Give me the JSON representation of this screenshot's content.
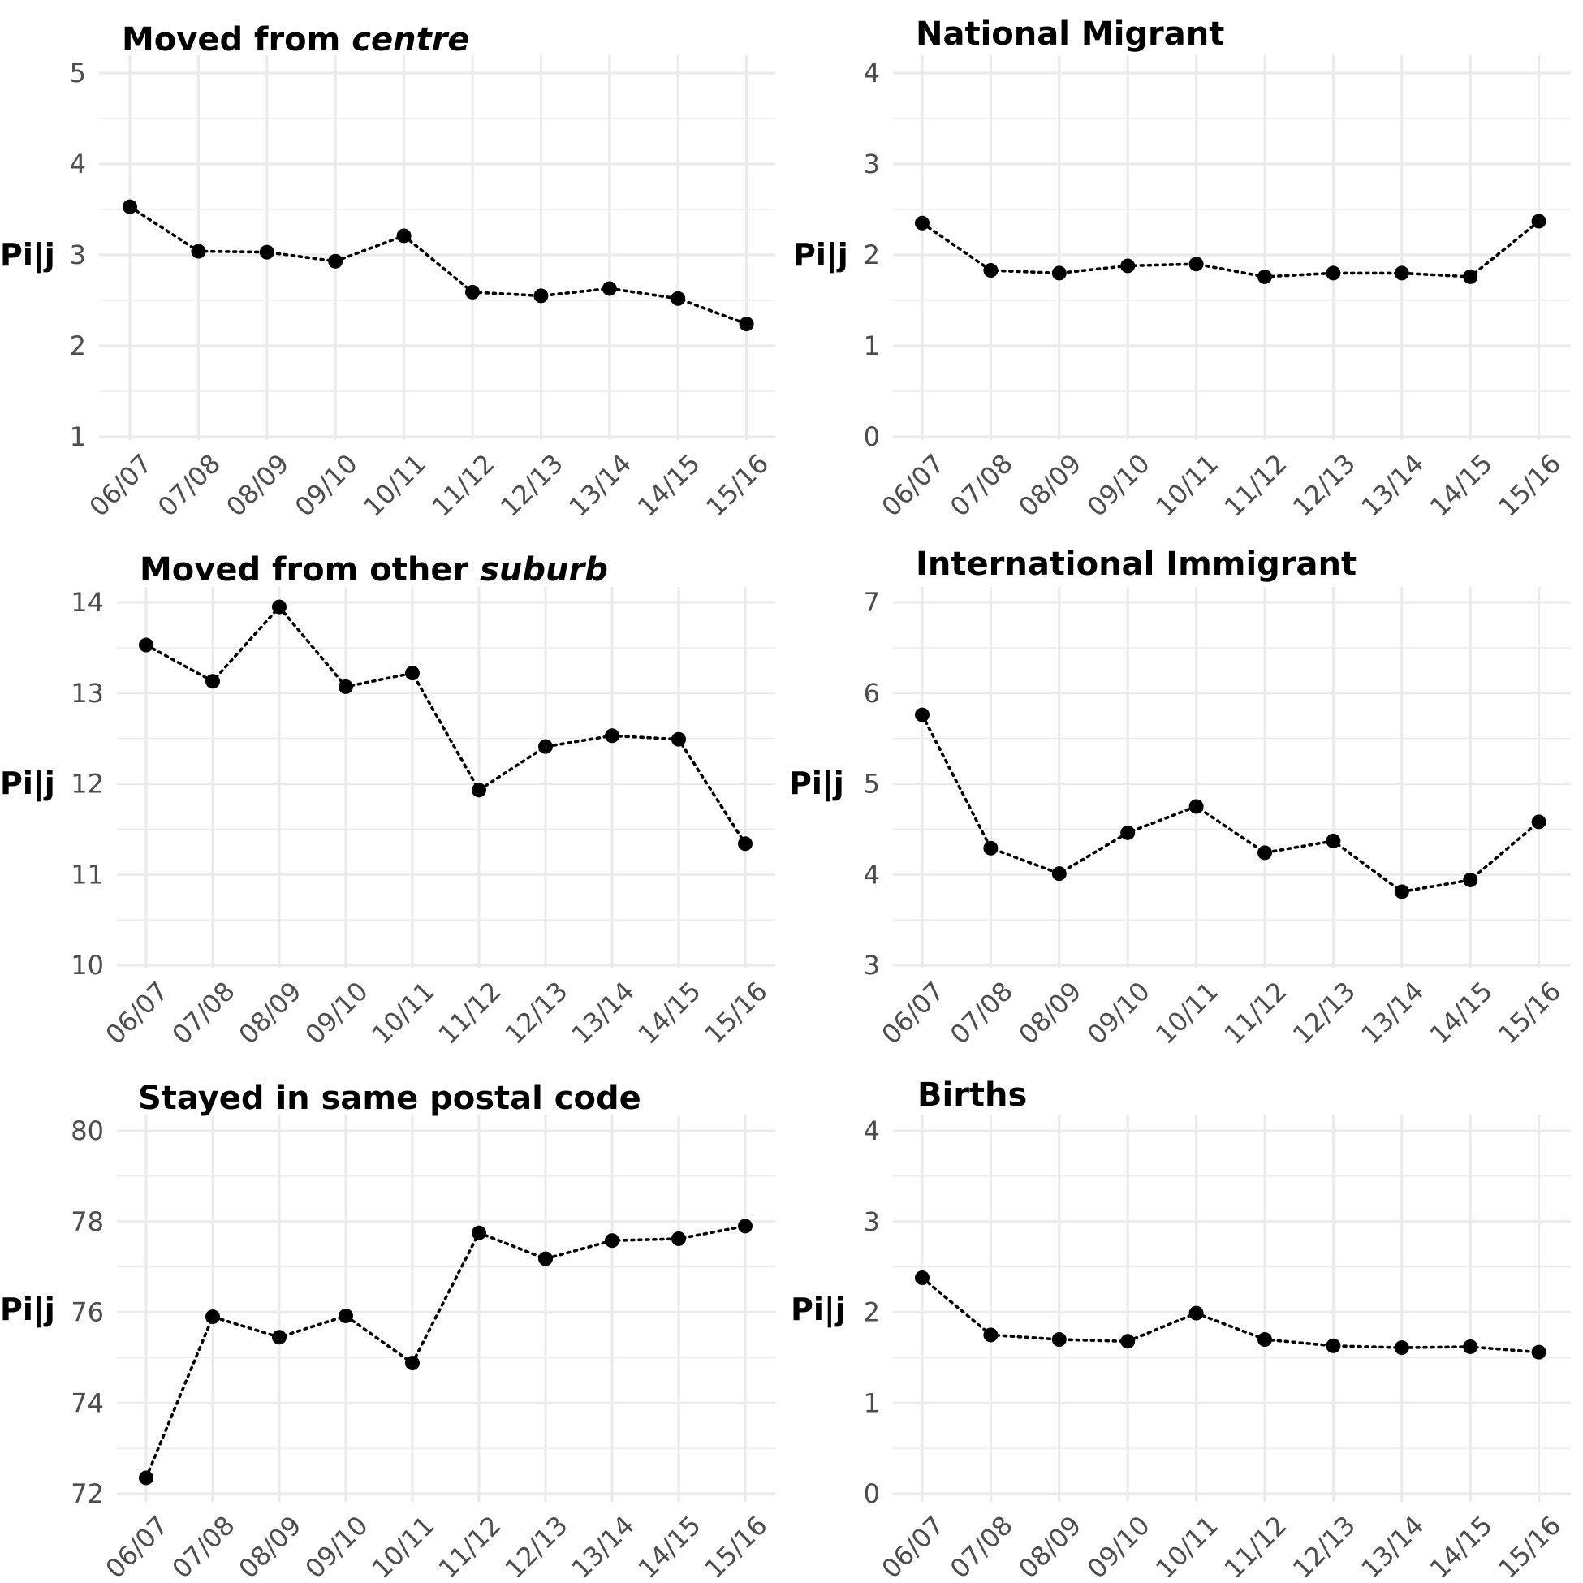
{
  "chart_data": [
    {
      "type": "line",
      "title": "Moved from ",
      "title_emph": "centre",
      "ylabel": "Pi|j",
      "categories": [
        "06/07",
        "07/08",
        "08/09",
        "09/10",
        "10/11",
        "11/12",
        "12/13",
        "13/14",
        "14/15",
        "15/16"
      ],
      "values": [
        3.53,
        3.04,
        3.03,
        2.93,
        3.21,
        2.59,
        2.55,
        2.63,
        2.52,
        2.24
      ],
      "ylim": [
        1,
        5
      ],
      "yticks": [
        1,
        2,
        3,
        4,
        5
      ],
      "grid": true
    },
    {
      "type": "line",
      "title": "National Migrant",
      "title_emph": "",
      "ylabel": "Pi|j",
      "categories": [
        "06/07",
        "07/08",
        "08/09",
        "09/10",
        "10/11",
        "11/12",
        "12/13",
        "13/14",
        "14/15",
        "15/16"
      ],
      "values": [
        2.35,
        1.83,
        1.8,
        1.88,
        1.9,
        1.76,
        1.8,
        1.8,
        1.76,
        2.37
      ],
      "ylim": [
        0,
        4
      ],
      "yticks": [
        0,
        1,
        2,
        3,
        4
      ],
      "grid": true
    },
    {
      "type": "line",
      "title": "Moved from other ",
      "title_emph": "suburb",
      "ylabel": "Pi|j",
      "categories": [
        "06/07",
        "07/08",
        "08/09",
        "09/10",
        "10/11",
        "11/12",
        "12/13",
        "13/14",
        "14/15",
        "15/16"
      ],
      "values": [
        13.53,
        13.13,
        13.95,
        13.07,
        13.22,
        11.93,
        12.41,
        12.53,
        12.49,
        11.34
      ],
      "ylim": [
        10,
        14
      ],
      "yticks": [
        10,
        11,
        12,
        13,
        14
      ],
      "grid": true
    },
    {
      "type": "line",
      "title": "International Immigrant",
      "title_emph": "",
      "ylabel": "Pi|j",
      "categories": [
        "06/07",
        "07/08",
        "08/09",
        "09/10",
        "10/11",
        "11/12",
        "12/13",
        "13/14",
        "14/15",
        "15/16"
      ],
      "values": [
        5.76,
        4.29,
        4.01,
        4.46,
        4.75,
        4.24,
        4.37,
        3.81,
        3.94,
        4.58
      ],
      "ylim": [
        3,
        7
      ],
      "yticks": [
        3,
        4,
        5,
        6,
        7
      ],
      "grid": true
    },
    {
      "type": "line",
      "title": "Stayed in same postal code",
      "title_emph": "",
      "ylabel": "Pi|j",
      "categories": [
        "06/07",
        "07/08",
        "08/09",
        "09/10",
        "10/11",
        "11/12",
        "12/13",
        "13/14",
        "14/15",
        "15/16"
      ],
      "values": [
        72.35,
        75.9,
        75.45,
        75.92,
        74.88,
        77.75,
        77.18,
        77.58,
        77.62,
        77.9
      ],
      "ylim": [
        72,
        80
      ],
      "yticks": [
        72,
        74,
        76,
        78,
        80
      ],
      "grid": true
    },
    {
      "type": "line",
      "title": "Births",
      "title_emph": "",
      "ylabel": "Pi|j",
      "categories": [
        "06/07",
        "07/08",
        "08/09",
        "09/10",
        "10/11",
        "11/12",
        "12/13",
        "13/14",
        "14/15",
        "15/16"
      ],
      "values": [
        2.38,
        1.75,
        1.7,
        1.68,
        1.99,
        1.7,
        1.63,
        1.61,
        1.62,
        1.56
      ],
      "ylim": [
        0,
        4
      ],
      "yticks": [
        0,
        1,
        2,
        3,
        4
      ],
      "grid": true
    }
  ]
}
